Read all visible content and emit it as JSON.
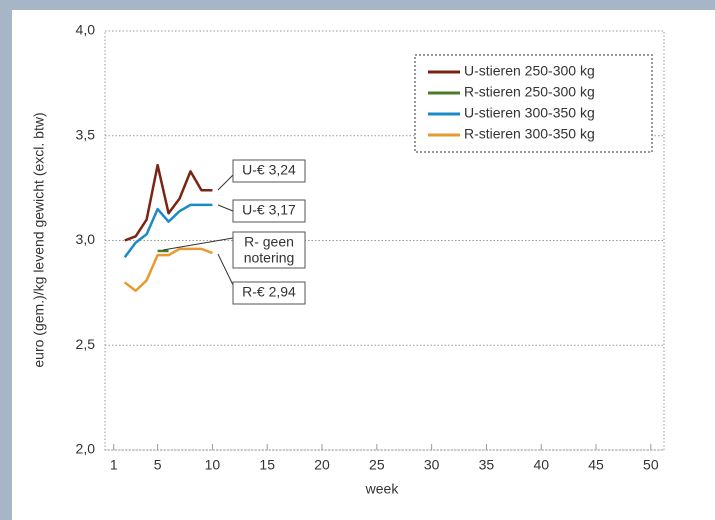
{
  "chart_data": {
    "type": "line",
    "y_label": "euro (gem.)/kg levend gewicht (excl. btw)",
    "x_label": "week",
    "x": [
      2,
      3,
      4,
      5,
      6,
      7,
      8,
      9,
      10
    ],
    "series": [
      {
        "name": "U-stieren 250-300 kg",
        "color": "#7a2412",
        "values": [
          3.0,
          3.02,
          3.1,
          3.36,
          3.13,
          3.2,
          3.33,
          3.24,
          3.24
        ]
      },
      {
        "name": "R-stieren 250-300 kg",
        "color": "#4b7a2b",
        "values": [
          null,
          null,
          null,
          2.95,
          2.95,
          null,
          null,
          null,
          null
        ]
      },
      {
        "name": "U-stieren 300-350 kg",
        "color": "#1a8ac8",
        "values": [
          2.92,
          2.99,
          3.03,
          3.15,
          3.09,
          3.14,
          3.17,
          3.17,
          3.17
        ]
      },
      {
        "name": "R-stieren 300-350 kg",
        "color": "#e89a2e",
        "values": [
          2.8,
          2.76,
          2.81,
          2.93,
          2.93,
          2.96,
          2.96,
          2.96,
          2.94
        ]
      }
    ],
    "annotations": [
      {
        "lines": [
          "U-€ 3,24"
        ]
      },
      {
        "lines": [
          "U-€ 3,17"
        ]
      },
      {
        "lines": [
          "R- geen",
          "notering"
        ]
      },
      {
        "lines": [
          "R-€ 2,94"
        ]
      }
    ],
    "xlim": [
      0.2,
      51.2
    ],
    "xticks": [
      1,
      5,
      10,
      15,
      20,
      25,
      30,
      35,
      40,
      45,
      50
    ],
    "ylim": [
      2,
      4
    ],
    "yticks": [
      {
        "value": 2,
        "label": "2,0"
      },
      {
        "value": 2.5,
        "label": "2,5"
      },
      {
        "value": 3,
        "label": "3,0"
      },
      {
        "value": 3.5,
        "label": "3,5"
      },
      {
        "value": 4,
        "label": "4,0"
      }
    ],
    "grid": true,
    "legend": "top-right"
  }
}
